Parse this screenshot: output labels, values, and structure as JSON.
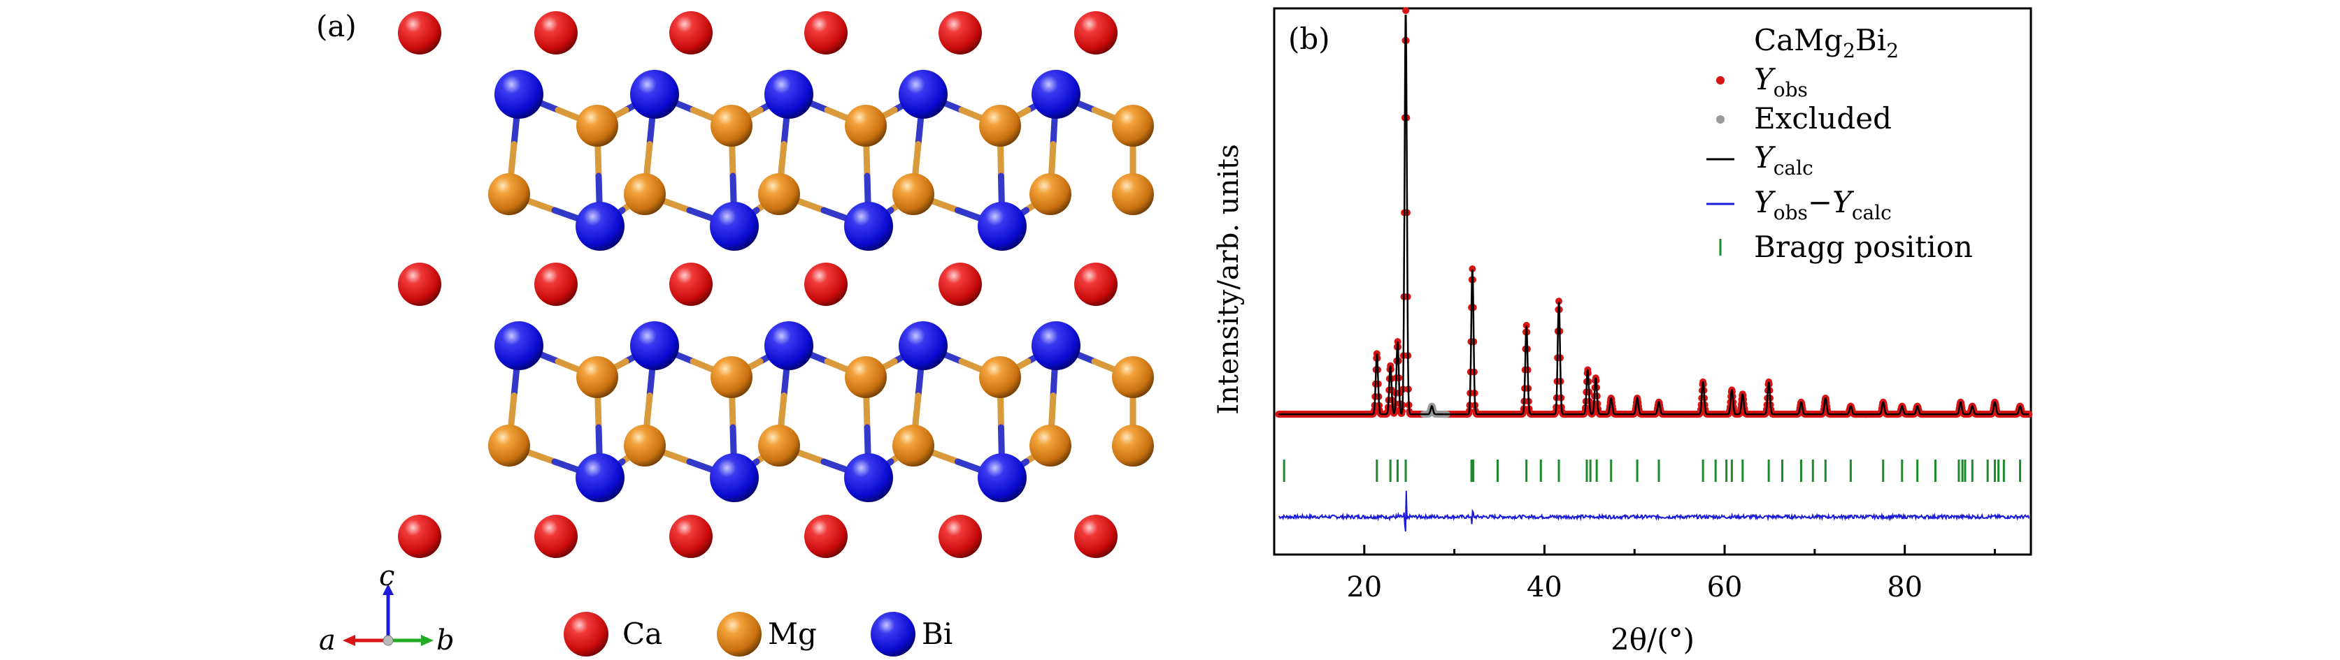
{
  "panel_a": {
    "label": "(a)",
    "legend": [
      {
        "symbol": "Ca",
        "color": "#e8141a"
      },
      {
        "symbol": "Mg",
        "color": "#e08a1c"
      },
      {
        "symbol": "Bi",
        "color": "#1e23d8"
      }
    ],
    "axes": {
      "a": "a",
      "b": "b",
      "c": "c"
    },
    "bond_colors": {
      "bi": "#3238c8",
      "mg": "#d99a3c"
    }
  },
  "panel_b": {
    "label": "(b)",
    "legend_title": {
      "main": "CaMg",
      "sub": "2",
      "tail": "Bi",
      "sub2": "2"
    },
    "legend": [
      {
        "key": "yobs",
        "text": "Y",
        "sub": "obs",
        "color": "#d81414"
      },
      {
        "key": "excluded",
        "text": "Excluded",
        "color": "#9a9a9a"
      },
      {
        "key": "ycalc",
        "text": "Y",
        "sub": "calc",
        "color": "#000000"
      },
      {
        "key": "diff",
        "text": "Y",
        "sub": "obs",
        "mid": "−Y",
        "sub2": "calc",
        "color": "#1a1ad8"
      },
      {
        "key": "bragg",
        "text": "Bragg position",
        "color": "#1a8a2a"
      }
    ],
    "ylabel": "Intensity/arb. units",
    "xlabel": "2θ/(°)"
  },
  "chart_data": {
    "type": "line",
    "xlabel": "2θ/(°)",
    "ylabel": "Intensity/arb. units",
    "xlim": [
      10,
      94
    ],
    "ylim": [
      0,
      100
    ],
    "xticks": [
      20,
      40,
      60,
      80
    ],
    "grid": false,
    "legend_position": "top-right",
    "background_level": 5,
    "peaks": [
      {
        "x": 21.4,
        "y": 15
      },
      {
        "x": 22.9,
        "y": 12
      },
      {
        "x": 23.7,
        "y": 18
      },
      {
        "x": 24.6,
        "y": 100
      },
      {
        "x": 27.5,
        "y": 2
      },
      {
        "x": 32.0,
        "y": 36
      },
      {
        "x": 38.0,
        "y": 22
      },
      {
        "x": 41.6,
        "y": 28
      },
      {
        "x": 44.8,
        "y": 11
      },
      {
        "x": 45.7,
        "y": 9
      },
      {
        "x": 47.4,
        "y": 4
      },
      {
        "x": 50.3,
        "y": 4
      },
      {
        "x": 52.7,
        "y": 3
      },
      {
        "x": 57.6,
        "y": 8
      },
      {
        "x": 60.8,
        "y": 6
      },
      {
        "x": 62.0,
        "y": 5
      },
      {
        "x": 64.9,
        "y": 8
      },
      {
        "x": 68.5,
        "y": 3
      },
      {
        "x": 71.2,
        "y": 4
      },
      {
        "x": 74.0,
        "y": 2
      },
      {
        "x": 77.6,
        "y": 3
      },
      {
        "x": 79.7,
        "y": 2
      },
      {
        "x": 81.4,
        "y": 2
      },
      {
        "x": 86.2,
        "y": 3
      },
      {
        "x": 87.5,
        "y": 2
      },
      {
        "x": 90.0,
        "y": 3
      },
      {
        "x": 92.8,
        "y": 2
      }
    ],
    "bragg_positions": [
      11.1,
      21.4,
      22.9,
      23.7,
      24.6,
      31.9,
      32.1,
      34.8,
      38.0,
      39.6,
      41.6,
      44.7,
      45.1,
      45.8,
      47.4,
      50.3,
      52.7,
      57.6,
      59.0,
      60.2,
      60.8,
      62.0,
      64.9,
      66.4,
      68.5,
      69.8,
      71.2,
      74.0,
      77.6,
      79.7,
      81.4,
      83.4,
      86.0,
      86.4,
      86.7,
      87.5,
      89.2,
      90.0,
      90.4,
      91.0,
      92.8
    ]
  }
}
